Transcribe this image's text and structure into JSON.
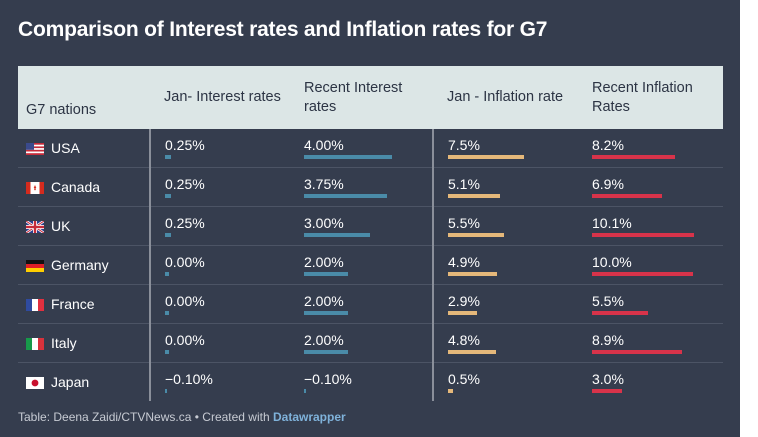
{
  "title": "Comparison of Interest rates and Inflation rates for G7",
  "columns": [
    "G7 nations",
    "Jan- Interest rates",
    "Recent Interest rates",
    "Jan - Inflation rate",
    "Recent Inflation Rates"
  ],
  "colors": {
    "interest": "#4a8ba8",
    "jan_inflation": "#e5b87a",
    "recent_inflation": "#d8334a"
  },
  "footer": {
    "text": "Table: Deena Zaidi/CTVNews.ca • Created with ",
    "link": "Datawrapper"
  },
  "chart_data": {
    "type": "table",
    "title": "Comparison of Interest rates and Inflation rates for G7",
    "columns": [
      "G7 nations",
      "Jan- Interest rates",
      "Recent Interest rates",
      "Jan - Inflation rate",
      "Recent Inflation Rates"
    ],
    "rows": [
      {
        "country": "USA",
        "flag": "us-flag-icon",
        "values": [
          0.25,
          4.0,
          7.5,
          8.2
        ],
        "labels": [
          "0.25%",
          "4.00%",
          "7.5%",
          "8.2%"
        ]
      },
      {
        "country": "Canada",
        "flag": "canada-flag-icon",
        "values": [
          0.25,
          3.75,
          5.1,
          6.9
        ],
        "labels": [
          "0.25%",
          "3.75%",
          "5.1%",
          "6.9%"
        ]
      },
      {
        "country": "UK",
        "flag": "uk-flag-icon",
        "values": [
          0.25,
          3.0,
          5.5,
          10.1
        ],
        "labels": [
          "0.25%",
          "3.00%",
          "5.5%",
          "10.1%"
        ]
      },
      {
        "country": "Germany",
        "flag": "germany-flag-icon",
        "values": [
          0.0,
          2.0,
          4.9,
          10.0
        ],
        "labels": [
          "0.00%",
          "2.00%",
          "4.9%",
          "10.0%"
        ]
      },
      {
        "country": "France",
        "flag": "france-flag-icon",
        "values": [
          0.0,
          2.0,
          2.9,
          5.5
        ],
        "labels": [
          "0.00%",
          "2.00%",
          "2.9%",
          "5.5%"
        ]
      },
      {
        "country": "Italy",
        "flag": "italy-flag-icon",
        "values": [
          0.0,
          2.0,
          4.8,
          8.9
        ],
        "labels": [
          "0.00%",
          "2.00%",
          "4.8%",
          "8.9%"
        ]
      },
      {
        "country": "Japan",
        "flag": "japan-flag-icon",
        "values": [
          -0.1,
          -0.1,
          0.5,
          3.0
        ],
        "labels": [
          "−0.10%",
          "−0.10%",
          "0.5%",
          "3.0%"
        ]
      }
    ]
  }
}
